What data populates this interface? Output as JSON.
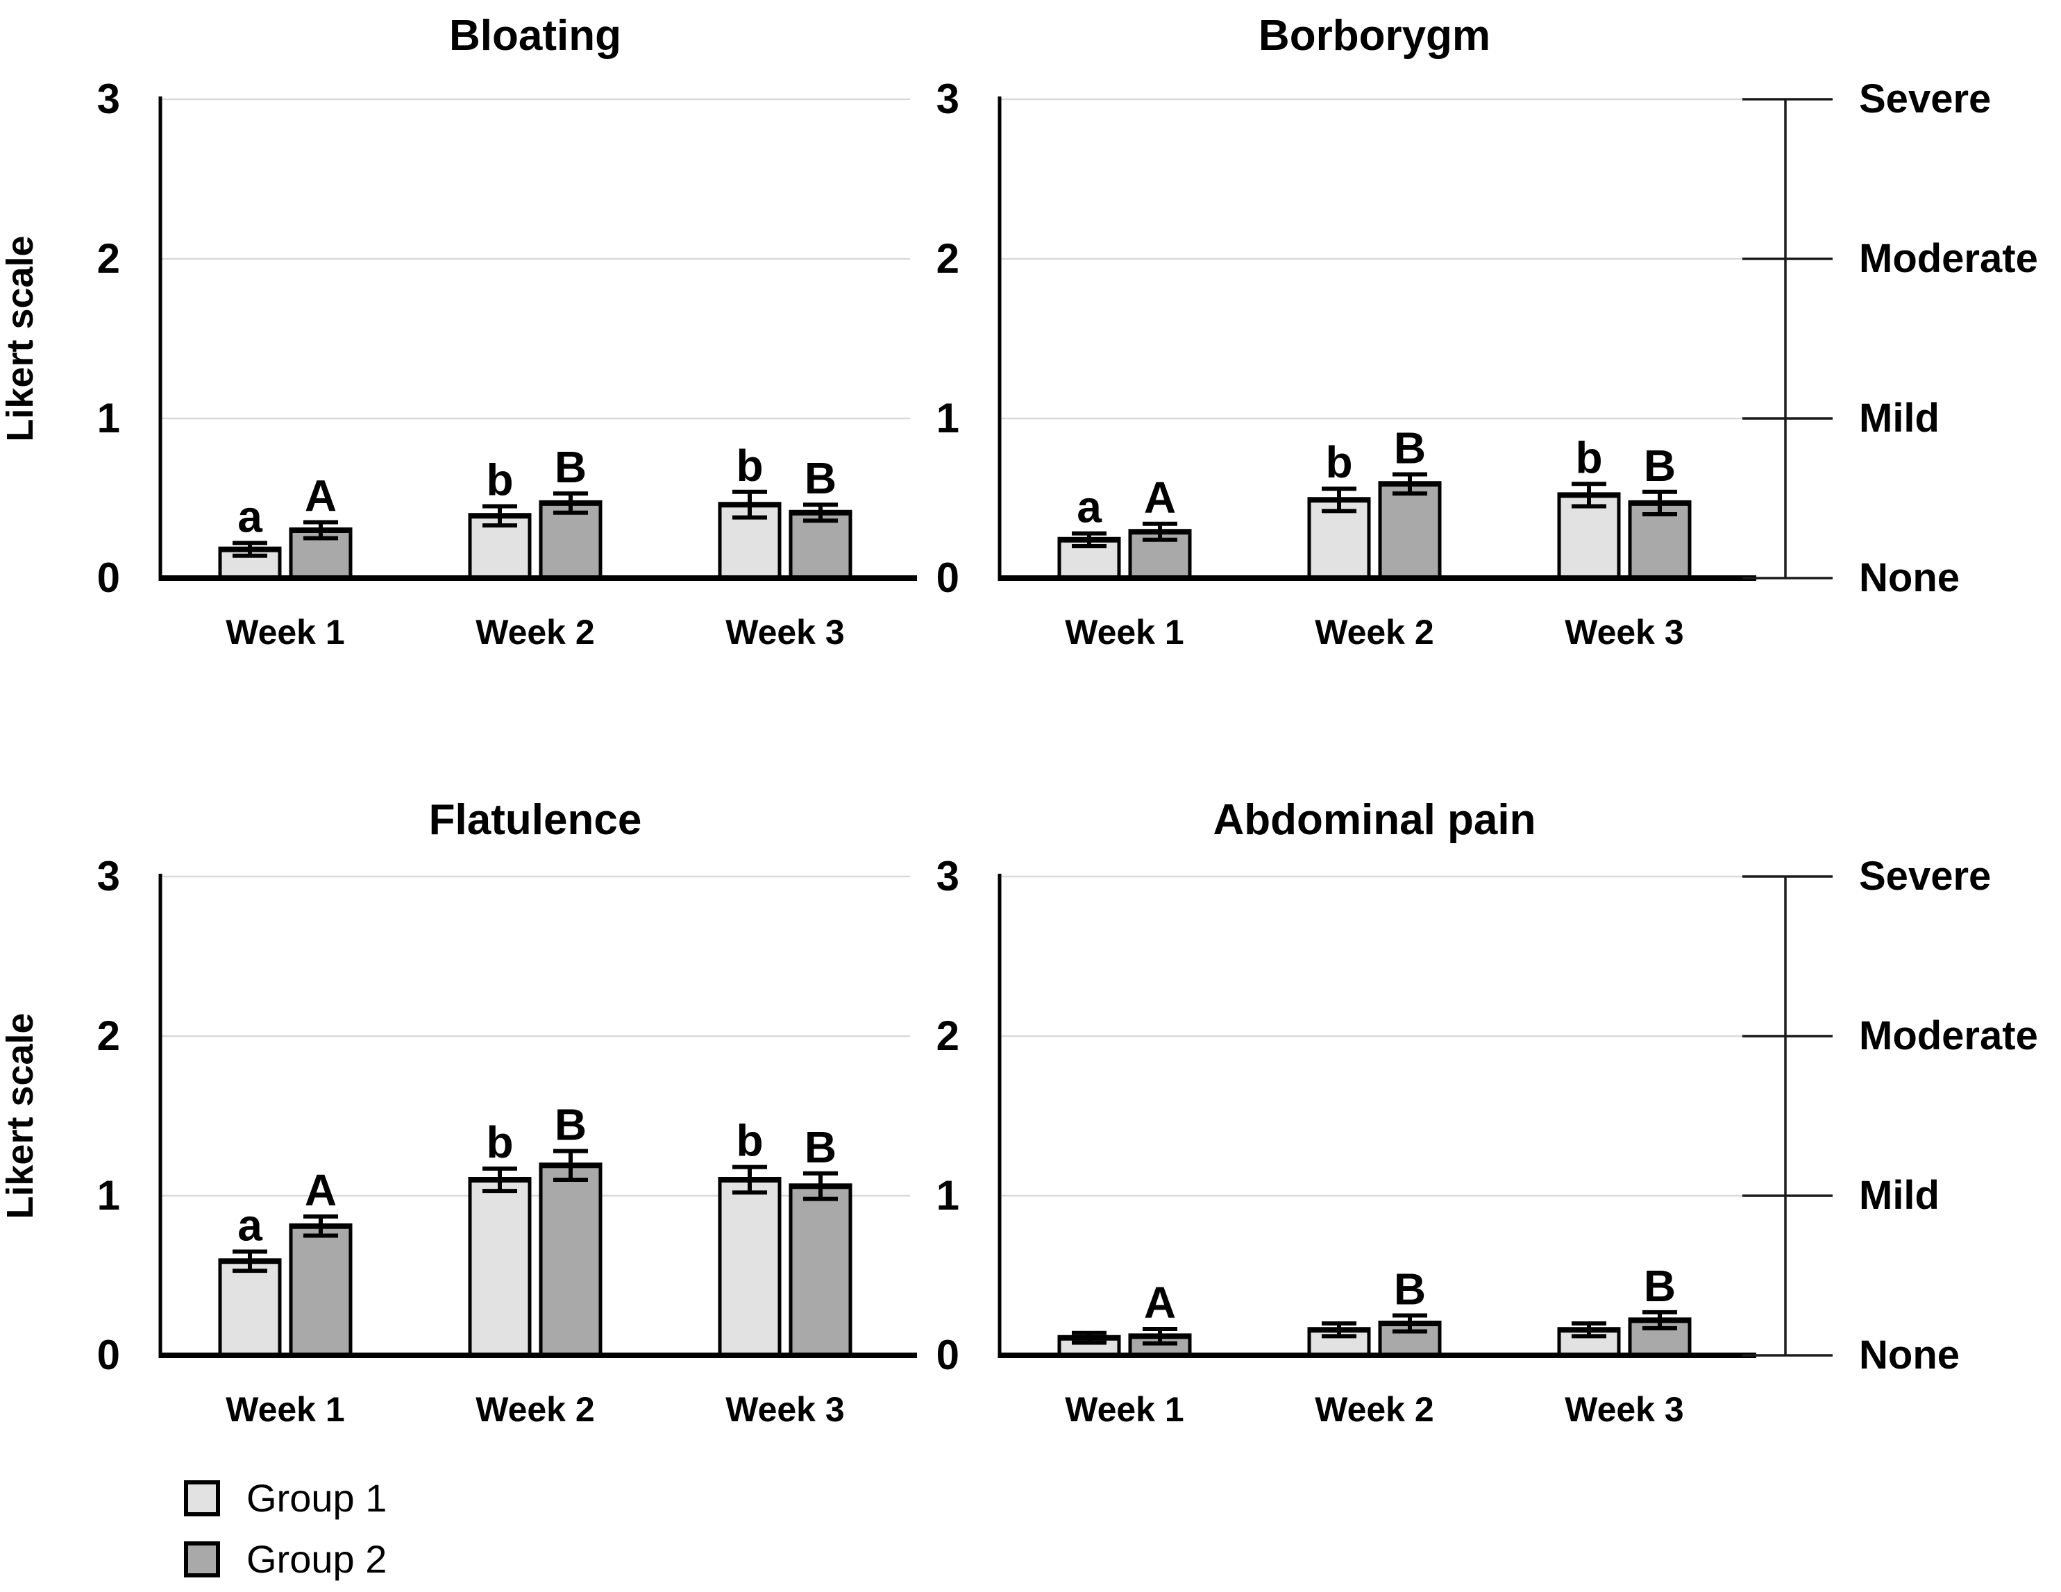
{
  "figure": {
    "y_axis_label": "Likert scale",
    "y_ticks": [
      "3",
      "2",
      "1",
      "0"
    ],
    "severity_labels": [
      "Severe",
      "Moderate",
      "Mild",
      "None"
    ],
    "categories": [
      "Week 1",
      "Week 2",
      "Week 3"
    ],
    "legend": [
      {
        "label": "Group 1",
        "color": "#e2e2e2"
      },
      {
        "label": "Group 2",
        "color": "#a9a9a9"
      }
    ],
    "colors": {
      "group1_fill": "#e2e2e2",
      "group2_fill": "#a9a9a9",
      "bar_stroke": "#000000",
      "gridline": "#d9d9d9",
      "axis": "#000000",
      "severity_scale": "#1a1a1a"
    }
  },
  "chart_data": [
    {
      "type": "bar",
      "title": "Bloating",
      "position": "top-left",
      "ylabel": "Likert scale",
      "ylim": [
        0,
        3
      ],
      "grid": true,
      "categories": [
        "Week 1",
        "Week 2",
        "Week 3"
      ],
      "series": [
        {
          "name": "Group 1",
          "color": "#e2e2e2",
          "values": [
            0.18,
            0.39,
            0.46
          ],
          "errors": [
            0.04,
            0.06,
            0.08
          ],
          "letters": [
            "a",
            "b",
            "b"
          ]
        },
        {
          "name": "Group 2",
          "color": "#a9a9a9",
          "values": [
            0.3,
            0.47,
            0.41
          ],
          "errors": [
            0.05,
            0.06,
            0.05
          ],
          "letters": [
            "A",
            "B",
            "B"
          ]
        }
      ]
    },
    {
      "type": "bar",
      "title": "Borborygm",
      "position": "top-right",
      "ylabel": "",
      "ylim": [
        0,
        3
      ],
      "grid": true,
      "categories": [
        "Week 1",
        "Week 2",
        "Week 3"
      ],
      "series": [
        {
          "name": "Group 1",
          "color": "#e2e2e2",
          "values": [
            0.24,
            0.49,
            0.52
          ],
          "errors": [
            0.04,
            0.07,
            0.07
          ],
          "letters": [
            "a",
            "b",
            "b"
          ]
        },
        {
          "name": "Group 2",
          "color": "#a9a9a9",
          "values": [
            0.29,
            0.59,
            0.47
          ],
          "errors": [
            0.05,
            0.06,
            0.07
          ],
          "letters": [
            "A",
            "B",
            "B"
          ]
        }
      ]
    },
    {
      "type": "bar",
      "title": "Flatulence",
      "position": "bottom-left",
      "ylabel": "Likert scale",
      "ylim": [
        0,
        3
      ],
      "grid": true,
      "categories": [
        "Week 1",
        "Week 2",
        "Week 3"
      ],
      "series": [
        {
          "name": "Group 1",
          "color": "#e2e2e2",
          "values": [
            0.59,
            1.1,
            1.1
          ],
          "errors": [
            0.06,
            0.07,
            0.08
          ],
          "letters": [
            "a",
            "b",
            "b"
          ]
        },
        {
          "name": "Group 2",
          "color": "#a9a9a9",
          "values": [
            0.81,
            1.19,
            1.06
          ],
          "errors": [
            0.06,
            0.09,
            0.08
          ],
          "letters": [
            "A",
            "B",
            "B"
          ]
        }
      ]
    },
    {
      "type": "bar",
      "title": "Abdominal pain",
      "position": "bottom-right",
      "ylabel": "",
      "ylim": [
        0,
        3
      ],
      "grid": true,
      "categories": [
        "Week 1",
        "Week 2",
        "Week 3"
      ],
      "series": [
        {
          "name": "Group 1",
          "color": "#e2e2e2",
          "values": [
            0.11,
            0.16,
            0.16
          ],
          "errors": [
            0.03,
            0.04,
            0.04
          ],
          "letters": [
            null,
            null,
            null
          ]
        },
        {
          "name": "Group 2",
          "color": "#a9a9a9",
          "values": [
            0.12,
            0.2,
            0.22
          ],
          "errors": [
            0.045,
            0.05,
            0.05
          ],
          "letters": [
            "A",
            "B",
            "B"
          ]
        }
      ]
    }
  ]
}
